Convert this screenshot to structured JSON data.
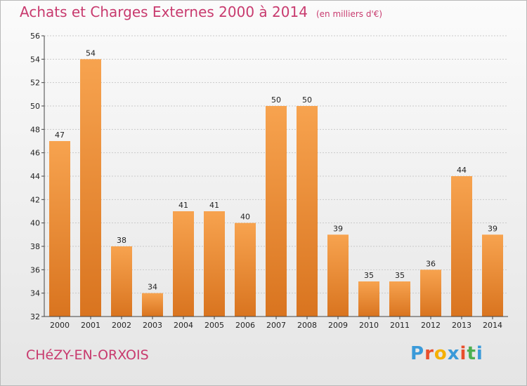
{
  "header": {
    "title": "Achats et Charges Externes 2000 à 2014",
    "unit": "(en milliers d'€)"
  },
  "footer": {
    "location": "CHéZY-EN-ORXOIS",
    "logo_text": "Proxiti",
    "logo_colors": [
      "#3a9ad9",
      "#e94f2c",
      "#f5b000",
      "#3a9ad9",
      "#e94f2c",
      "#4caf50",
      "#3a9ad9"
    ]
  },
  "colors": {
    "title": "#c83a6e",
    "bar_top": "#f7a34f",
    "bar_bottom": "#d9741f"
  },
  "chart_data": {
    "type": "bar",
    "categories": [
      "2000",
      "2001",
      "2002",
      "2003",
      "2004",
      "2005",
      "2006",
      "2007",
      "2008",
      "2009",
      "2010",
      "2011",
      "2012",
      "2013",
      "2014"
    ],
    "values": [
      47,
      54,
      38,
      34,
      41,
      41,
      40,
      50,
      50,
      39,
      35,
      35,
      36,
      44,
      39
    ],
    "ylim": [
      32,
      56
    ],
    "yticks": [
      32,
      34,
      36,
      38,
      40,
      42,
      44,
      46,
      48,
      50,
      52,
      54,
      56
    ],
    "grid": true,
    "data_labels": true
  }
}
